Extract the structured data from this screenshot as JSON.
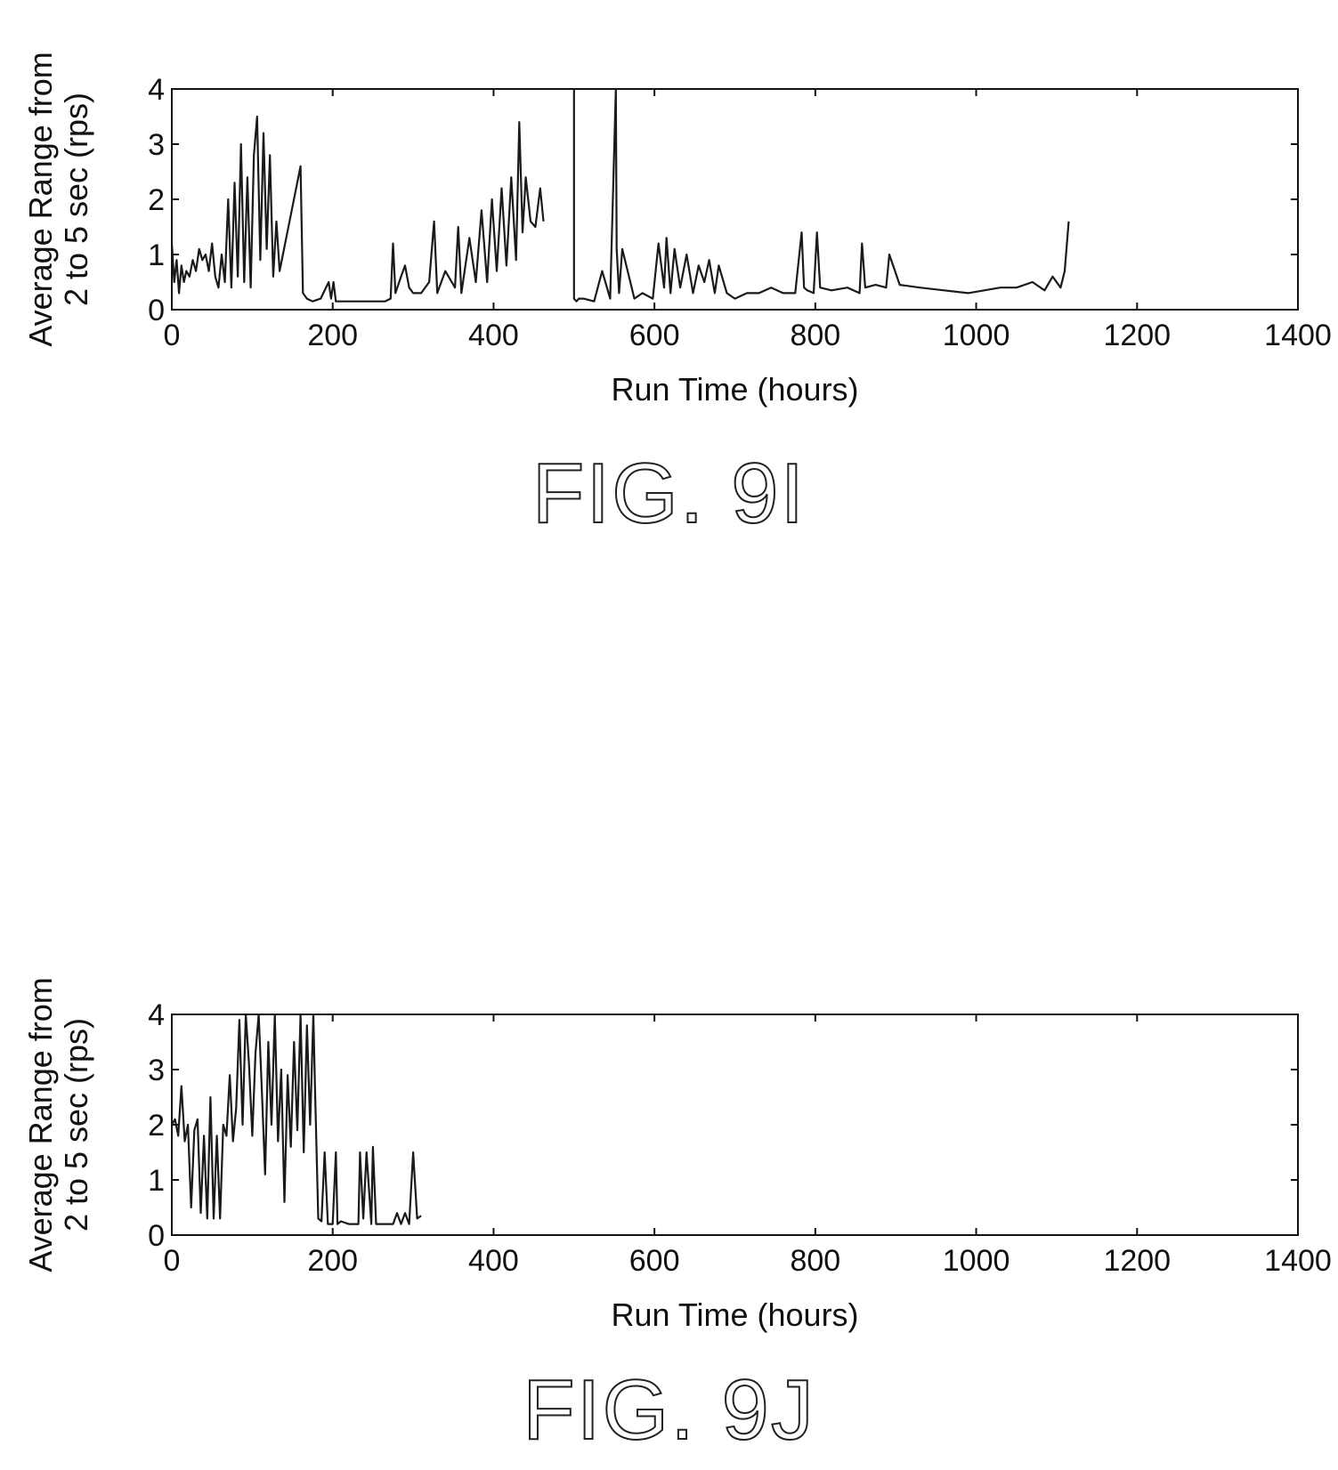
{
  "chart_data": [
    {
      "type": "line",
      "caption": "FIG. 9I",
      "xlabel": "Run Time (hours)",
      "ylabel_line1": "Average Range from",
      "ylabel_line2": "2 to 5 sec (rps)",
      "xlim": [
        0,
        1400
      ],
      "ylim": [
        0,
        4
      ],
      "xticks": [
        0,
        200,
        400,
        600,
        800,
        1000,
        1200,
        1400
      ],
      "yticks": [
        0,
        1,
        2,
        3,
        4
      ],
      "grid": false,
      "series": [
        {
          "x": [
            0,
            3,
            6,
            9,
            12,
            15,
            18,
            22,
            26,
            30,
            34,
            38,
            42,
            46,
            50,
            54,
            58,
            62,
            66,
            70,
            74,
            78,
            82,
            86,
            90,
            94,
            98,
            102,
            106,
            110,
            114,
            118,
            122,
            126,
            130,
            134,
            160,
            163,
            168,
            175,
            185,
            195,
            198,
            201,
            204,
            210,
            225,
            245,
            265,
            272,
            275,
            278,
            285,
            290,
            295,
            300,
            310,
            320,
            326,
            330,
            340,
            352,
            356,
            360,
            370,
            378,
            385,
            392,
            398,
            404,
            410,
            416,
            422,
            428,
            432,
            436,
            440,
            446,
            452,
            458,
            462
          ],
          "y": [
            1.2,
            0.5,
            0.9,
            0.3,
            0.8,
            0.5,
            0.7,
            0.6,
            0.9,
            0.7,
            1.1,
            0.9,
            1.0,
            0.7,
            1.2,
            0.6,
            0.4,
            1.0,
            0.5,
            2.0,
            0.4,
            2.3,
            0.6,
            3.0,
            0.5,
            2.4,
            0.4,
            2.8,
            3.5,
            0.9,
            3.2,
            1.1,
            2.8,
            0.6,
            1.6,
            0.7,
            2.6,
            0.3,
            0.2,
            0.15,
            0.2,
            0.5,
            0.2,
            0.5,
            0.15,
            0.15,
            0.15,
            0.15,
            0.15,
            0.2,
            1.2,
            0.3,
            0.6,
            0.8,
            0.4,
            0.3,
            0.3,
            0.5,
            1.6,
            0.3,
            0.7,
            0.4,
            1.5,
            0.3,
            1.3,
            0.5,
            1.8,
            0.5,
            2.0,
            0.7,
            2.2,
            0.8,
            2.4,
            0.9,
            3.4,
            1.4,
            2.4,
            1.6,
            1.5,
            2.2,
            1.6
          ]
        },
        {
          "x": [
            500,
            500,
            503,
            506,
            512,
            525,
            535,
            545,
            552,
            553,
            556,
            560,
            575,
            585,
            598,
            605,
            612,
            615,
            620,
            625,
            632,
            640,
            648,
            655,
            662,
            668,
            675,
            680,
            690,
            700,
            715,
            730,
            745,
            760,
            775,
            783,
            786,
            790,
            798,
            802,
            806,
            820,
            840,
            855,
            858,
            862,
            875,
            888,
            892,
            905,
            930,
            960,
            990,
            1010,
            1030,
            1050,
            1070,
            1085,
            1095,
            1105,
            1110,
            1115
          ],
          "y": [
            4.0,
            0.2,
            0.15,
            0.2,
            0.2,
            0.15,
            0.7,
            0.2,
            4.0,
            1.1,
            0.3,
            1.1,
            0.2,
            0.3,
            0.2,
            1.2,
            0.4,
            1.3,
            0.3,
            1.1,
            0.4,
            1.0,
            0.3,
            0.8,
            0.5,
            0.9,
            0.3,
            0.8,
            0.3,
            0.2,
            0.3,
            0.3,
            0.4,
            0.3,
            0.3,
            1.4,
            0.4,
            0.35,
            0.3,
            1.4,
            0.4,
            0.35,
            0.4,
            0.3,
            1.2,
            0.4,
            0.45,
            0.4,
            1.0,
            0.45,
            0.4,
            0.35,
            0.3,
            0.35,
            0.4,
            0.4,
            0.5,
            0.35,
            0.6,
            0.4,
            0.7,
            1.6
          ]
        }
      ]
    },
    {
      "type": "line",
      "caption": "FIG. 9J",
      "xlabel": "Run Time (hours)",
      "ylabel_line1": "Average Range from",
      "ylabel_line2": "2 to 5 sec (rps)",
      "xlim": [
        0,
        1400
      ],
      "ylim": [
        0,
        4
      ],
      "xticks": [
        0,
        200,
        400,
        600,
        800,
        1000,
        1200,
        1400
      ],
      "yticks": [
        0,
        1,
        2,
        3,
        4
      ],
      "grid": false,
      "series": [
        {
          "x": [
            0,
            4,
            8,
            12,
            16,
            20,
            24,
            28,
            32,
            36,
            40,
            44,
            48,
            52,
            56,
            60,
            64,
            68,
            72,
            76,
            80,
            84,
            88,
            92,
            96,
            100,
            104,
            108,
            112,
            116,
            120,
            124,
            128,
            132,
            136,
            140,
            144,
            148,
            152,
            156,
            160,
            164,
            168,
            172,
            176,
            178,
            182,
            186,
            190,
            194,
            196,
            200,
            204,
            206,
            210,
            220,
            232,
            234,
            238,
            242,
            248,
            250,
            254,
            265,
            275,
            280,
            285,
            290,
            295,
            300,
            305,
            310
          ],
          "y": [
            2.0,
            2.1,
            1.8,
            2.7,
            1.7,
            2.0,
            0.5,
            1.9,
            2.1,
            0.4,
            1.8,
            0.3,
            2.5,
            0.3,
            1.8,
            0.3,
            2.0,
            1.8,
            2.9,
            1.7,
            2.3,
            3.9,
            2.0,
            4.0,
            3.1,
            1.8,
            3.3,
            4.0,
            2.6,
            1.1,
            3.5,
            2.0,
            4.0,
            1.7,
            3.0,
            0.6,
            2.9,
            1.6,
            3.5,
            1.9,
            4.0,
            1.5,
            3.8,
            2.0,
            4.0,
            2.7,
            0.3,
            0.25,
            1.5,
            0.2,
            0.2,
            0.2,
            1.5,
            0.2,
            0.25,
            0.2,
            0.2,
            1.5,
            0.3,
            1.5,
            0.2,
            1.6,
            0.2,
            0.2,
            0.2,
            0.4,
            0.2,
            0.4,
            0.2,
            1.5,
            0.3,
            0.35
          ]
        }
      ]
    }
  ]
}
